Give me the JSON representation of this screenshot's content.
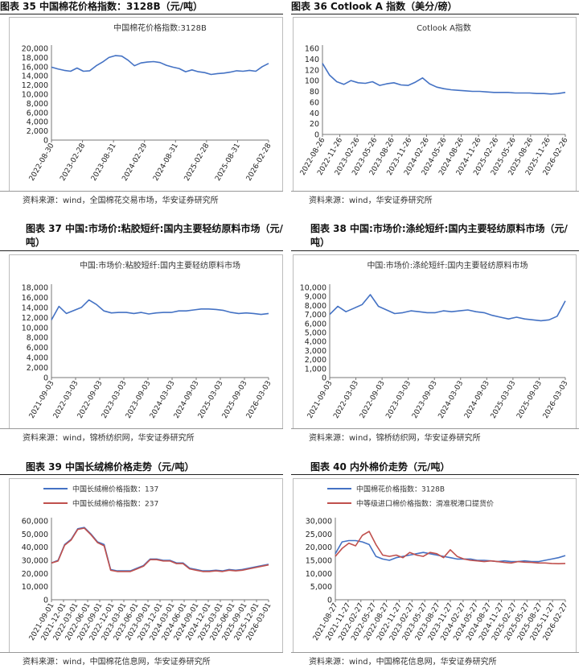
{
  "figures": [
    {
      "caption": "图表 35 中国棉花价格指数：3128B（元/吨）",
      "source": "资料来源：wind，全国棉花交易市场，华安证券研究所",
      "chart_data": {
        "type": "line",
        "title": "中国棉花价格指数:3128B",
        "ylim": [
          0,
          20000
        ],
        "yticks": [
          "0",
          "2,000",
          "4,000",
          "6,000",
          "8,000",
          "10,000",
          "12,000",
          "14,000",
          "16,000",
          "18,000",
          "20,000"
        ],
        "xticks": [
          "2022-08-30",
          "2023-02-28",
          "2023-08-31",
          "2024-02-29",
          "2024-08-31",
          "2025-02-28",
          "2025-08-31",
          "2026-02-28"
        ],
        "legend": "none",
        "series": [
          {
            "name": "",
            "color": "#4472c4",
            "values": [
              15900,
              15500,
              15200,
              15000,
              15700,
              15000,
              15100,
              16200,
              17000,
              18000,
              18400,
              18300,
              17400,
              16200,
              16800,
              17000,
              17100,
              16900,
              16300,
              15900,
              15600,
              14900,
              15300,
              14900,
              14700,
              14300,
              14500,
              14600,
              14800,
              15100,
              15000,
              15200,
              15000,
              16000,
              16700
            ]
          }
        ]
      }
    },
    {
      "caption": "图表 36 Cotlook A 指数（美分/磅）",
      "source": "资料来源：wind，华安证券研究所",
      "chart_data": {
        "type": "line",
        "title": "Cotlook A指数",
        "ylim": [
          0,
          160
        ],
        "yticks": [
          "0",
          "20",
          "40",
          "60",
          "80",
          "100",
          "120",
          "140",
          "160"
        ],
        "xticks": [
          "2022-08-26",
          "2022-11-26",
          "2023-02-26",
          "2023-05-26",
          "2023-08-26",
          "2023-11-26",
          "2024-02-26",
          "2024-05-26",
          "2024-08-26",
          "2024-11-26",
          "2025-02-26",
          "2025-05-26",
          "2025-08-26",
          "2025-11-26",
          "2026-02-26"
        ],
        "legend": "none",
        "series": [
          {
            "name": "",
            "color": "#4472c4",
            "values": [
              132,
              110,
              98,
              93,
              100,
              96,
              95,
              98,
              91,
              94,
              96,
              92,
              91,
              97,
              105,
              94,
              88,
              85,
              83,
              82,
              81,
              80,
              80,
              79,
              78,
              78,
              78,
              77,
              77,
              77,
              76,
              76,
              75,
              76,
              78
            ]
          }
        ]
      }
    },
    {
      "caption": "图表 37 中国:市场价:粘胶短纤:国内主要轻纺原料市场（元/吨）",
      "source": "资料来源：wind，锦桥纺织网，华安证券研究所",
      "chart_data": {
        "type": "line",
        "title": "中国:市场价:粘胶短纤:国内主要轻纺原料市场",
        "ylim": [
          0,
          18000
        ],
        "yticks": [
          "0",
          "2,000",
          "4,000",
          "6,000",
          "8,000",
          "10,000",
          "12,000",
          "14,000",
          "16,000",
          "18,000"
        ],
        "xticks": [
          "2021-09-03",
          "2022-03-03",
          "2022-09-03",
          "2023-03-03",
          "2023-09-03",
          "2024-03-03",
          "2024-09-03",
          "2025-03-03",
          "2025-09-03",
          "2026-03-03"
        ],
        "legend": "none",
        "series": [
          {
            "name": "",
            "color": "#4472c4",
            "values": [
              11500,
              14200,
              12800,
              13400,
              14000,
              15500,
              14600,
              13300,
              12900,
              13000,
              13000,
              12800,
              13000,
              12700,
              12900,
              13000,
              13000,
              13300,
              13300,
              13500,
              13700,
              13700,
              13600,
              13400,
              13000,
              12800,
              12900,
              12800,
              12600,
              12800
            ]
          }
        ]
      }
    },
    {
      "caption": "图表 38 中国:市场价:涤纶短纤:国内主要轻纺原料市场（元/吨）",
      "source": "资料来源：wind，锦桥纺织网，华安证券研究所",
      "chart_data": {
        "type": "line",
        "title": "中国:市场价:涤纶短纤:国内主要轻纺原料市场",
        "ylim": [
          0,
          10000
        ],
        "yticks": [
          "0",
          "1,000",
          "2,000",
          "3,000",
          "4,000",
          "5,000",
          "6,000",
          "7,000",
          "8,000",
          "9,000",
          "10,000"
        ],
        "xticks": [
          "2021-09-03",
          "2022-03-03",
          "2022-09-03",
          "2023-03-03",
          "2023-09-03",
          "2024-03-03",
          "2024-09-03",
          "2025-03-03",
          "2025-09-03",
          "2026-03-03"
        ],
        "legend": "none",
        "series": [
          {
            "name": "",
            "color": "#4472c4",
            "values": [
              7000,
              7900,
              7300,
              7700,
              8100,
              9200,
              7900,
              7500,
              7100,
              7200,
              7400,
              7300,
              7200,
              7200,
              7400,
              7300,
              7400,
              7500,
              7300,
              7200,
              6900,
              6700,
              6500,
              6700,
              6500,
              6400,
              6300,
              6400,
              6800,
              8500
            ]
          }
        ]
      }
    },
    {
      "caption": "图表 39 中国长绒棉价格走势（元/吨）",
      "source": "资料来源：wind，中国棉花信息网，华安证券研究所",
      "chart_data": {
        "type": "line",
        "ylim": [
          0,
          60000
        ],
        "yticks": [
          "0",
          "10,000",
          "20,000",
          "30,000",
          "40,000",
          "50,000",
          "60,000"
        ],
        "xticks": [
          "2021-09-01",
          "2021-12-01",
          "2022-03-01",
          "2022-06-01",
          "2022-09-01",
          "2022-12-01",
          "2023-03-01",
          "2023-06-01",
          "2023-09-01",
          "2023-12-01",
          "2024-03-01",
          "2024-06-01",
          "2024-09-01",
          "2024-12-01",
          "2025-03-01",
          "2025-06-01",
          "2025-09-01",
          "2025-12-01",
          "2026-03-01"
        ],
        "legend": "top-left",
        "series": [
          {
            "name": "中国长绒棉价格指数：137",
            "color": "#4472c4",
            "values": [
              28000,
              30000,
              42000,
              46000,
              54000,
              55000,
              50000,
              44000,
              42000,
              23000,
              22000,
              22000,
              22000,
              24000,
              26000,
              31000,
              31000,
              30000,
              30000,
              28000,
              28000,
              24000,
              23000,
              22000,
              22000,
              22500,
              22000,
              23000,
              22500,
              23000,
              24000,
              25000,
              26000,
              27000
            ]
          },
          {
            "name": "中国长绒棉价格指数：237",
            "color": "#c0504d",
            "values": [
              28000,
              29500,
              41500,
              45500,
              53500,
              54500,
              49500,
              43500,
              41000,
              22500,
              21500,
              21500,
              21500,
              23500,
              25500,
              30500,
              30500,
              29500,
              29500,
              27500,
              27500,
              23500,
              22500,
              21500,
              21500,
              22000,
              21500,
              22500,
              22000,
              22500,
              23500,
              24500,
              25500,
              26500
            ]
          }
        ]
      }
    },
    {
      "caption": "图表 40 内外棉价走势（元/吨）",
      "source": "资料来源：wind，中国棉花信息网，华安证券研究所",
      "chart_data": {
        "type": "line",
        "ylim": [
          0,
          30000
        ],
        "yticks": [
          "0",
          "5,000",
          "10,000",
          "15,000",
          "20,000",
          "25,000",
          "30,000"
        ],
        "xticks": [
          "2021-08-27",
          "2021-11-27",
          "2022-02-27",
          "2022-05-27",
          "2022-08-27",
          "2022-11-27",
          "2023-02-27",
          "2023-05-27",
          "2023-08-27",
          "2023-11-27",
          "2024-02-27",
          "2024-05-27",
          "2024-08-27",
          "2024-11-27",
          "2025-02-27",
          "2025-05-27",
          "2025-08-27",
          "2025-11-27",
          "2026-02-27"
        ],
        "legend": "top-left",
        "series": [
          {
            "name": "中国棉花价格指数：3128B",
            "color": "#4472c4",
            "values": [
              17500,
              22000,
              22500,
              22500,
              22000,
              21000,
              16500,
              15500,
              15000,
              16000,
              16500,
              17000,
              17500,
              18000,
              17500,
              17000,
              16500,
              16000,
              15500,
              15500,
              15500,
              15000,
              15000,
              14800,
              14500,
              14800,
              14500,
              14500,
              14800,
              14500,
              14500,
              15000,
              15500,
              16000,
              16800
            ]
          },
          {
            "name": "中等级进口棉价格指数：滑准税港口提货价",
            "color": "#c0504d",
            "values": [
              16500,
              19500,
              21500,
              20500,
              24500,
              26000,
              21000,
              17000,
              16500,
              17000,
              16000,
              18000,
              17000,
              16500,
              18000,
              17500,
              16000,
              19000,
              16500,
              15500,
              15000,
              14800,
              14500,
              14800,
              14500,
              14200,
              14000,
              14500,
              14300,
              14200,
              14000,
              14000,
              13800,
              13700,
              13800
            ]
          }
        ]
      }
    }
  ]
}
